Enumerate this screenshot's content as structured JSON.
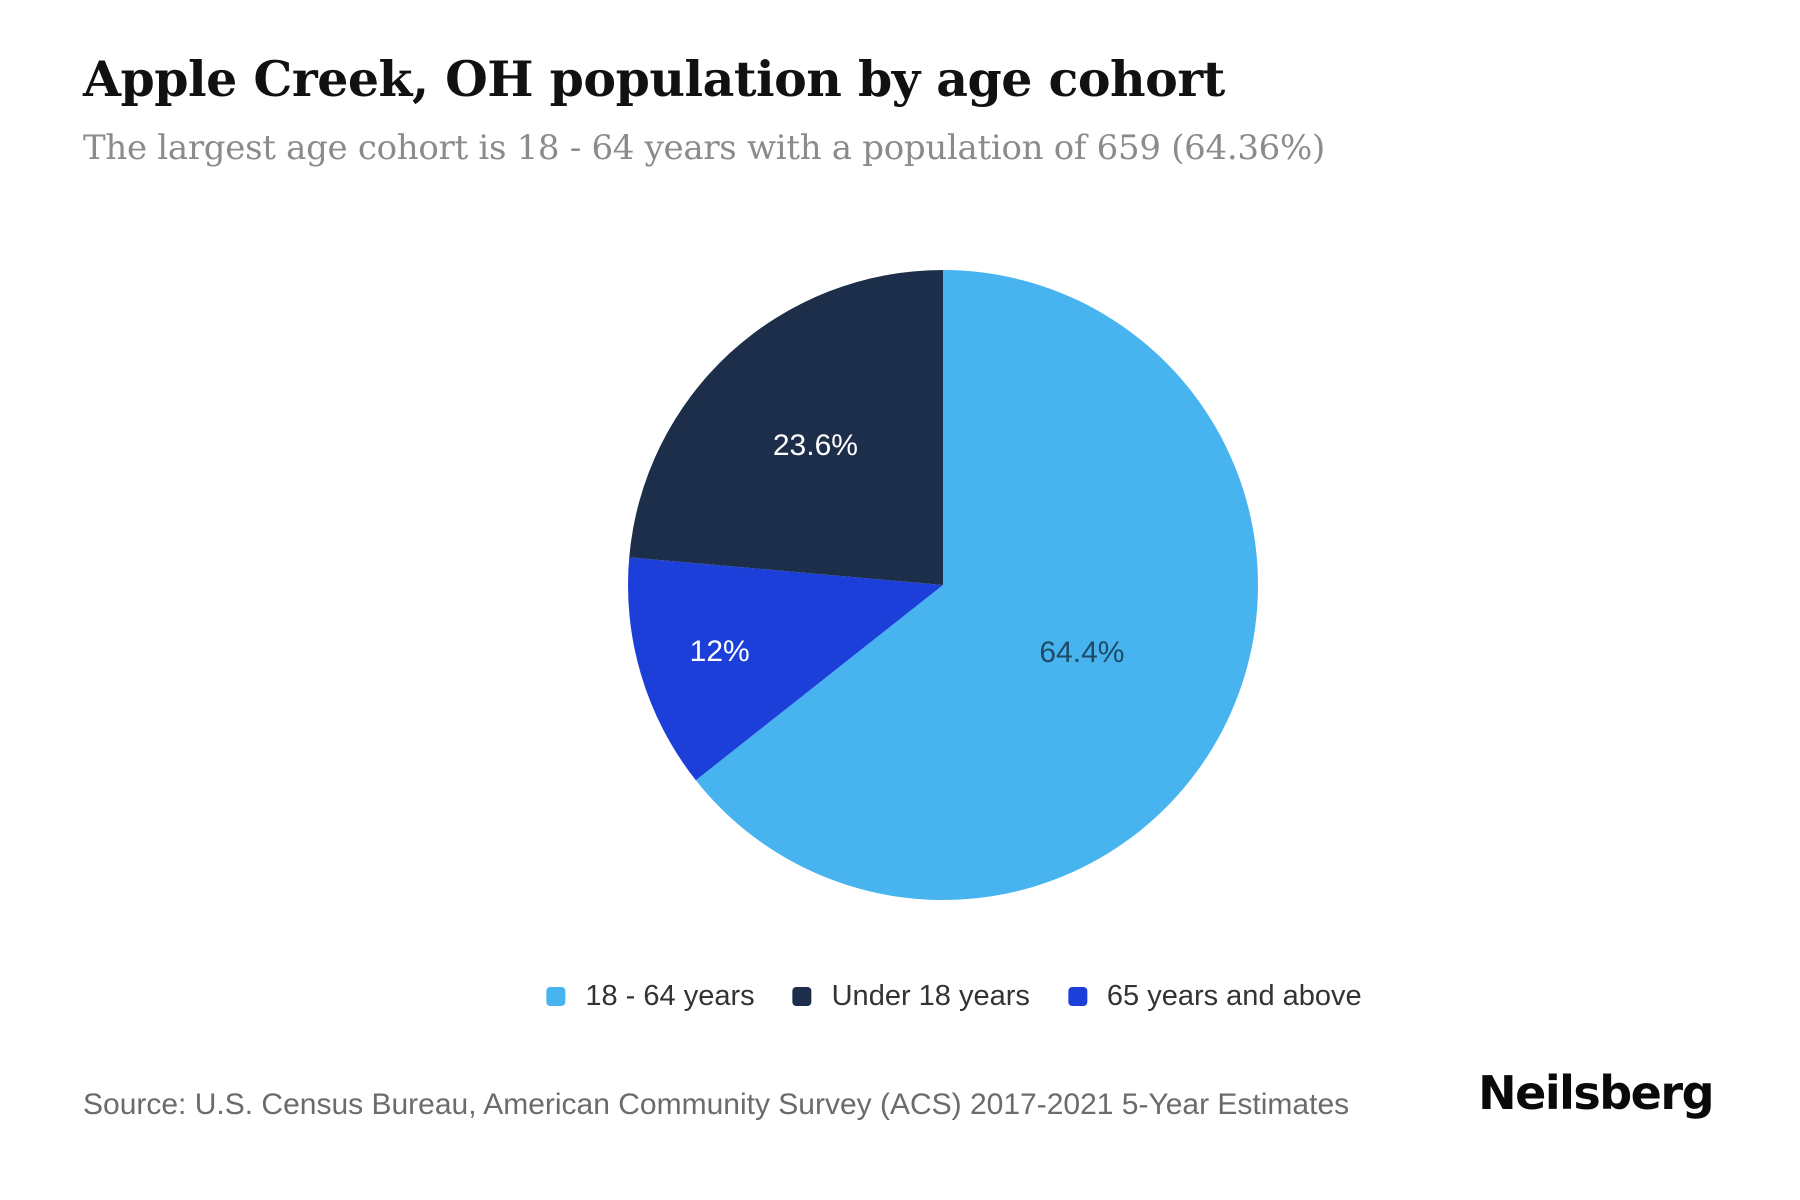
{
  "header": {
    "title": "Apple Creek, OH population by age cohort",
    "subtitle": "The largest age cohort is 18 - 64 years with a population of 659 (64.36%)"
  },
  "chart_data": {
    "type": "pie",
    "title": "Apple Creek, OH population by age cohort",
    "subtitle": "The largest age cohort is 18 - 64 years with a population of 659 (64.36%)",
    "segments": [
      {
        "label": "18 - 64 years",
        "value_pct": 64.36,
        "data_label": "64.4%",
        "color": "#47b4ef",
        "data_label_color": "#1f4a66"
      },
      {
        "label": "Under 18 years",
        "value_pct": 23.6,
        "data_label": "23.6%",
        "color": "#1c2e49",
        "data_label_color": "#ffffff"
      },
      {
        "label": "65 years and above",
        "value_pct": 12.04,
        "data_label": "12%",
        "color": "#1d3fd9",
        "data_label_color": "#ffffff"
      }
    ],
    "largest_cohort_population": 659,
    "legend_position": "bottom",
    "start_angle_deg": 0,
    "direction": "clockwise"
  },
  "footer": {
    "source": "Source: U.S. Census Bureau, American Community Survey (ACS) 2017-2021 5-Year Estimates",
    "brand": "Neilsberg"
  }
}
